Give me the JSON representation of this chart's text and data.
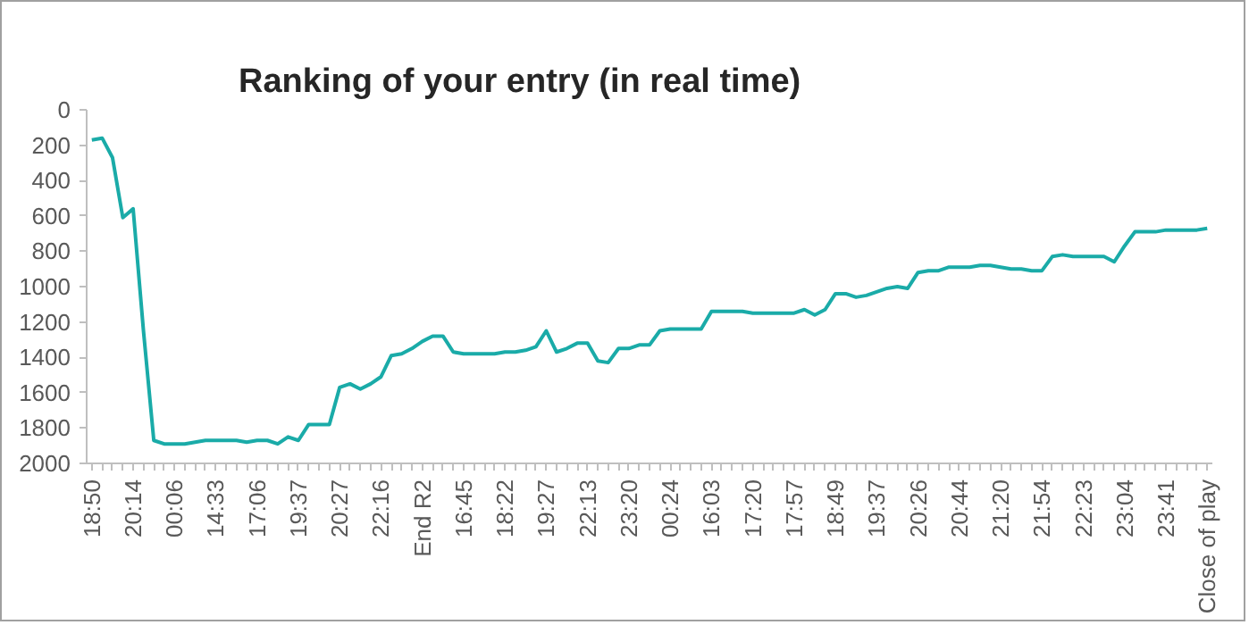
{
  "chart_data": {
    "type": "line",
    "title": "Ranking of your entry (in real time)",
    "categories": [
      "18:50",
      null,
      null,
      null,
      "20:14",
      null,
      null,
      null,
      "00:06",
      null,
      null,
      null,
      "14:33",
      null,
      null,
      null,
      "17:06",
      null,
      null,
      null,
      "19:37",
      null,
      null,
      null,
      "20:27",
      null,
      null,
      null,
      "22:16",
      null,
      null,
      null,
      "End R2",
      null,
      null,
      null,
      "16:45",
      null,
      null,
      null,
      "18:22",
      null,
      null,
      null,
      "19:27",
      null,
      null,
      null,
      "22:13",
      null,
      null,
      null,
      "23:20",
      null,
      null,
      null,
      "00:24",
      null,
      null,
      null,
      "16:03",
      null,
      null,
      null,
      "17:20",
      null,
      null,
      null,
      "17:57",
      null,
      null,
      null,
      "18:49",
      null,
      null,
      null,
      "19:37",
      null,
      null,
      null,
      "20:26",
      null,
      null,
      null,
      "20:44",
      null,
      null,
      null,
      "21:20",
      null,
      null,
      null,
      "21:54",
      null,
      null,
      null,
      "22:23",
      null,
      null,
      null,
      "23:04",
      null,
      null,
      null,
      "23:41",
      null,
      null,
      null,
      "Close of play"
    ],
    "series": [
      {
        "color": "#1aaba8",
        "values": [
          170,
          160,
          270,
          610,
          560,
          1250,
          1870,
          1890,
          1890,
          1890,
          1880,
          1870,
          1870,
          1870,
          1870,
          1880,
          1870,
          1870,
          1890,
          1850,
          1870,
          1780,
          1780,
          1780,
          1570,
          1550,
          1580,
          1550,
          1510,
          1390,
          1380,
          1350,
          1310,
          1280,
          1280,
          1370,
          1380,
          1380,
          1380,
          1380,
          1370,
          1370,
          1360,
          1340,
          1250,
          1370,
          1350,
          1320,
          1320,
          1420,
          1430,
          1350,
          1350,
          1330,
          1330,
          1250,
          1240,
          1240,
          1240,
          1240,
          1140,
          1140,
          1140,
          1140,
          1150,
          1150,
          1150,
          1150,
          1150,
          1130,
          1160,
          1130,
          1040,
          1040,
          1060,
          1050,
          1030,
          1010,
          1000,
          1010,
          920,
          910,
          910,
          890,
          890,
          890,
          880,
          880,
          890,
          900,
          900,
          910,
          910,
          830,
          820,
          830,
          830,
          830,
          830,
          860,
          770,
          690,
          690,
          690,
          680,
          680,
          680,
          680,
          670
        ]
      }
    ],
    "ylim": [
      2000,
      0
    ],
    "yticks": [
      0,
      200,
      400,
      600,
      800,
      1000,
      1200,
      1400,
      1600,
      1800,
      2000
    ],
    "line_style": "solid",
    "marker": "none",
    "grid": false
  }
}
